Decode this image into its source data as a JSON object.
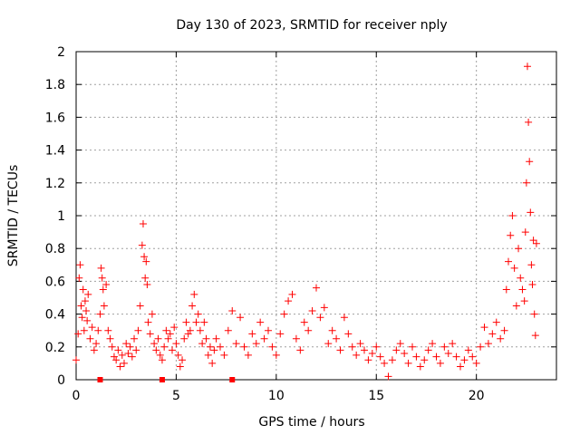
{
  "chart_data": {
    "type": "scatter",
    "title": "Day 130 of 2023, SRMTID for receiver nply",
    "xlabel": "GPS time / hours",
    "ylabel": "SRMTID / TECUs",
    "xlim": [
      0,
      24
    ],
    "ylim": [
      0,
      2
    ],
    "xticks": [
      0,
      5,
      10,
      15,
      20
    ],
    "xtick_labels": [
      "0",
      "5",
      "10",
      "15",
      "20"
    ],
    "yticks": [
      0,
      0.2,
      0.4,
      0.6,
      0.8,
      1,
      1.2,
      1.4,
      1.6,
      1.8,
      2
    ],
    "ytick_labels": [
      "0",
      "0.2",
      "0.4",
      "0.6",
      "0.8",
      "1",
      "1.2",
      "1.4",
      "1.6",
      "1.8",
      "2"
    ],
    "grid": true,
    "series": [
      {
        "name": "SRMTID",
        "marker": "+",
        "color": "#ff0000",
        "points": [
          [
            0.0,
            0.12
          ],
          [
            0.1,
            0.28
          ],
          [
            0.15,
            0.62
          ],
          [
            0.2,
            0.7
          ],
          [
            0.25,
            0.45
          ],
          [
            0.3,
            0.38
          ],
          [
            0.35,
            0.55
          ],
          [
            0.4,
            0.3
          ],
          [
            0.45,
            0.48
          ],
          [
            0.5,
            0.42
          ],
          [
            0.55,
            0.36
          ],
          [
            0.6,
            0.52
          ],
          [
            0.7,
            0.25
          ],
          [
            0.8,
            0.32
          ],
          [
            0.9,
            0.18
          ],
          [
            1.0,
            0.22
          ],
          [
            1.1,
            0.3
          ],
          [
            1.2,
            0.4
          ],
          [
            1.25,
            0.68
          ],
          [
            1.3,
            0.62
          ],
          [
            1.35,
            0.55
          ],
          [
            1.4,
            0.45
          ],
          [
            1.5,
            0.58
          ],
          [
            1.6,
            0.3
          ],
          [
            1.7,
            0.25
          ],
          [
            1.8,
            0.2
          ],
          [
            1.9,
            0.14
          ],
          [
            2.0,
            0.12
          ],
          [
            2.1,
            0.18
          ],
          [
            2.2,
            0.08
          ],
          [
            2.3,
            0.15
          ],
          [
            2.4,
            0.1
          ],
          [
            2.5,
            0.22
          ],
          [
            2.6,
            0.16
          ],
          [
            2.7,
            0.2
          ],
          [
            2.8,
            0.14
          ],
          [
            2.9,
            0.25
          ],
          [
            3.0,
            0.18
          ],
          [
            3.1,
            0.3
          ],
          [
            3.2,
            0.45
          ],
          [
            3.3,
            0.82
          ],
          [
            3.35,
            0.95
          ],
          [
            3.4,
            0.75
          ],
          [
            3.45,
            0.62
          ],
          [
            3.5,
            0.72
          ],
          [
            3.55,
            0.58
          ],
          [
            3.6,
            0.35
          ],
          [
            3.7,
            0.28
          ],
          [
            3.8,
            0.4
          ],
          [
            3.9,
            0.22
          ],
          [
            4.0,
            0.18
          ],
          [
            4.1,
            0.25
          ],
          [
            4.2,
            0.15
          ],
          [
            4.3,
            0.12
          ],
          [
            4.4,
            0.2
          ],
          [
            4.5,
            0.3
          ],
          [
            4.6,
            0.25
          ],
          [
            4.7,
            0.28
          ],
          [
            4.8,
            0.18
          ],
          [
            4.9,
            0.32
          ],
          [
            5.0,
            0.22
          ],
          [
            5.1,
            0.15
          ],
          [
            5.2,
            0.08
          ],
          [
            5.3,
            0.12
          ],
          [
            5.4,
            0.25
          ],
          [
            5.5,
            0.35
          ],
          [
            5.6,
            0.28
          ],
          [
            5.7,
            0.3
          ],
          [
            5.8,
            0.45
          ],
          [
            5.9,
            0.52
          ],
          [
            6.0,
            0.35
          ],
          [
            6.1,
            0.4
          ],
          [
            6.2,
            0.3
          ],
          [
            6.3,
            0.22
          ],
          [
            6.4,
            0.35
          ],
          [
            6.5,
            0.25
          ],
          [
            6.6,
            0.15
          ],
          [
            6.7,
            0.2
          ],
          [
            6.8,
            0.1
          ],
          [
            6.9,
            0.18
          ],
          [
            7.0,
            0.25
          ],
          [
            7.2,
            0.2
          ],
          [
            7.4,
            0.15
          ],
          [
            7.6,
            0.3
          ],
          [
            7.8,
            0.42
          ],
          [
            8.0,
            0.22
          ],
          [
            8.2,
            0.38
          ],
          [
            8.4,
            0.2
          ],
          [
            8.6,
            0.15
          ],
          [
            8.8,
            0.28
          ],
          [
            9.0,
            0.22
          ],
          [
            9.2,
            0.35
          ],
          [
            9.4,
            0.25
          ],
          [
            9.6,
            0.3
          ],
          [
            9.8,
            0.2
          ],
          [
            10.0,
            0.15
          ],
          [
            10.2,
            0.28
          ],
          [
            10.4,
            0.4
          ],
          [
            10.6,
            0.48
          ],
          [
            10.8,
            0.52
          ],
          [
            11.0,
            0.25
          ],
          [
            11.2,
            0.18
          ],
          [
            11.4,
            0.35
          ],
          [
            11.6,
            0.3
          ],
          [
            11.8,
            0.42
          ],
          [
            12.0,
            0.56
          ],
          [
            12.2,
            0.38
          ],
          [
            12.4,
            0.44
          ],
          [
            12.6,
            0.22
          ],
          [
            12.8,
            0.3
          ],
          [
            13.0,
            0.25
          ],
          [
            13.2,
            0.18
          ],
          [
            13.4,
            0.38
          ],
          [
            13.6,
            0.28
          ],
          [
            13.8,
            0.2
          ],
          [
            14.0,
            0.15
          ],
          [
            14.2,
            0.22
          ],
          [
            14.4,
            0.18
          ],
          [
            14.6,
            0.12
          ],
          [
            14.8,
            0.16
          ],
          [
            15.0,
            0.2
          ],
          [
            15.2,
            0.14
          ],
          [
            15.4,
            0.1
          ],
          [
            15.6,
            0.02
          ],
          [
            15.8,
            0.12
          ],
          [
            16.0,
            0.18
          ],
          [
            16.2,
            0.22
          ],
          [
            16.4,
            0.16
          ],
          [
            16.6,
            0.1
          ],
          [
            16.8,
            0.2
          ],
          [
            17.0,
            0.14
          ],
          [
            17.2,
            0.08
          ],
          [
            17.4,
            0.12
          ],
          [
            17.6,
            0.18
          ],
          [
            17.8,
            0.22
          ],
          [
            18.0,
            0.14
          ],
          [
            18.2,
            0.1
          ],
          [
            18.4,
            0.2
          ],
          [
            18.6,
            0.16
          ],
          [
            18.8,
            0.22
          ],
          [
            19.0,
            0.14
          ],
          [
            19.2,
            0.08
          ],
          [
            19.4,
            0.12
          ],
          [
            19.6,
            0.18
          ],
          [
            19.8,
            0.14
          ],
          [
            20.0,
            0.1
          ],
          [
            20.2,
            0.2
          ],
          [
            20.4,
            0.32
          ],
          [
            20.6,
            0.22
          ],
          [
            20.8,
            0.28
          ],
          [
            21.0,
            0.35
          ],
          [
            21.2,
            0.25
          ],
          [
            21.4,
            0.3
          ],
          [
            21.5,
            0.55
          ],
          [
            21.6,
            0.72
          ],
          [
            21.7,
            0.88
          ],
          [
            21.8,
            1.0
          ],
          [
            21.9,
            0.68
          ],
          [
            22.0,
            0.45
          ],
          [
            22.1,
            0.8
          ],
          [
            22.2,
            0.62
          ],
          [
            22.3,
            0.55
          ],
          [
            22.4,
            0.48
          ],
          [
            22.45,
            0.9
          ],
          [
            22.5,
            1.2
          ],
          [
            22.55,
            1.91
          ],
          [
            22.6,
            1.57
          ],
          [
            22.65,
            1.33
          ],
          [
            22.7,
            1.02
          ],
          [
            22.75,
            0.7
          ],
          [
            22.8,
            0.58
          ],
          [
            22.85,
            0.85
          ],
          [
            22.9,
            0.4
          ],
          [
            22.95,
            0.27
          ],
          [
            23.0,
            0.83
          ]
        ]
      }
    ],
    "baseline_markers": {
      "marker": "square",
      "color": "#ff0000",
      "x": [
        1.2,
        4.3,
        7.8
      ]
    }
  }
}
